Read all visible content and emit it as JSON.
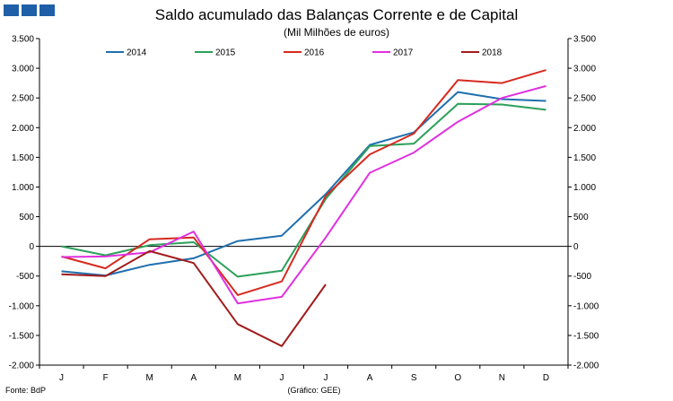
{
  "header": {
    "title": "Saldo acumulado das Balanças Corrente e de Capital",
    "subtitle": "(Mil Milhões de euros)"
  },
  "footer": {
    "source": "Fonte: BdP",
    "credit": "(Gráfico: GEE)"
  },
  "logo": {
    "name": "gee-logo",
    "color": "#1f5fa8"
  },
  "chart_data": {
    "type": "line",
    "title": "Saldo acumulado das Balanças Corrente e de Capital",
    "subtitle": "(Mil Milhões de euros)",
    "categories": [
      "J",
      "F",
      "M",
      "A",
      "M",
      "J",
      "J",
      "A",
      "S",
      "O",
      "N",
      "D"
    ],
    "ylim": [
      -2000,
      3500
    ],
    "yticks": [
      -2000,
      -1500,
      -1000,
      -500,
      0,
      500,
      1000,
      1500,
      2000,
      2500,
      3000,
      3500
    ],
    "ytick_labels": [
      "-2.000",
      "-1.500",
      "-1.000",
      "-500",
      "0",
      "500",
      "1.000",
      "1.500",
      "2.000",
      "2.500",
      "3.000",
      "3.500"
    ],
    "right_ytick_labels": [
      "-2.000",
      "-1.500",
      "-1.000",
      "-500",
      "0",
      "500",
      "1.000",
      "1.500",
      "2.000",
      "2.500",
      "3.000",
      "3.500"
    ],
    "grid": false,
    "legend_position": "top",
    "series": [
      {
        "name": "2014",
        "color": "#1f6fae",
        "values": [
          -420,
          -490,
          -310,
          -200,
          90,
          180,
          880,
          1710,
          1920,
          2600,
          2480,
          2450
        ]
      },
      {
        "name": "2015",
        "color": "#2ca05a",
        "values": [
          0,
          -150,
          20,
          70,
          -510,
          -410,
          800,
          1690,
          1730,
          2400,
          2390,
          2300
        ]
      },
      {
        "name": "2016",
        "color": "#d62a1f",
        "values": [
          -170,
          -370,
          120,
          150,
          -820,
          -590,
          850,
          1550,
          1900,
          2800,
          2750,
          2970
        ]
      },
      {
        "name": "2017",
        "color": "#e030e0",
        "values": [
          -180,
          -170,
          -100,
          250,
          -960,
          -850,
          150,
          1240,
          1580,
          2100,
          2500,
          2700
        ]
      },
      {
        "name": "2018",
        "color": "#a01c1c",
        "values": [
          -470,
          -500,
          -80,
          -280,
          -1310,
          -1680,
          -640,
          null,
          null,
          null,
          null,
          null
        ]
      }
    ]
  }
}
